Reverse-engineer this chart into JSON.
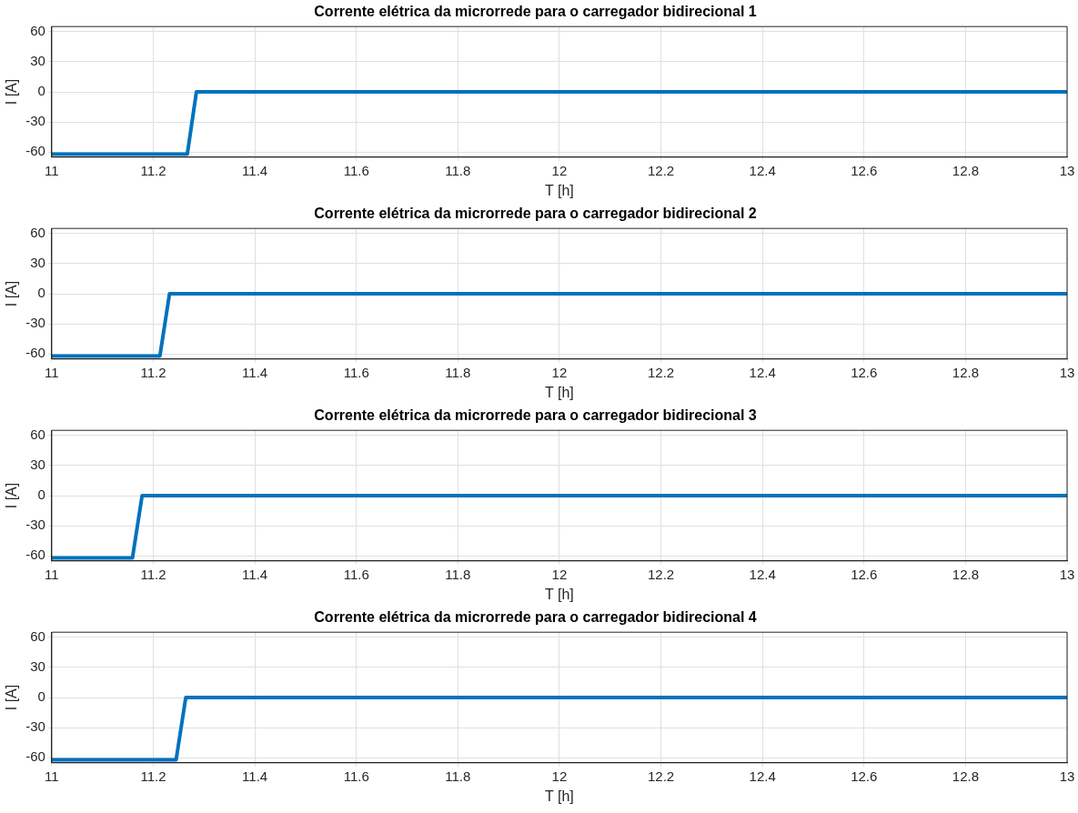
{
  "chart_data": [
    {
      "type": "line",
      "title": "Corrente elétrica da microrrede para o carregador bidirecional 1",
      "xlabel": "T [h]",
      "ylabel": "I [A]",
      "xlim": [
        11,
        13
      ],
      "xticks": [
        11,
        {
          "value": 11.2,
          "label": "11.2"
        },
        {
          "value": 11.4,
          "label": "11.4"
        },
        {
          "value": 11.6,
          "label": "11.6"
        },
        {
          "value": 11.8,
          "label": "11.8"
        },
        12,
        {
          "value": 12.2,
          "label": "12.2"
        },
        {
          "value": 12.4,
          "label": "12.4"
        },
        {
          "value": 12.6,
          "label": "12.6"
        },
        {
          "value": 12.8,
          "label": "12.8"
        },
        13
      ],
      "ylim": [
        -65,
        65
      ],
      "yticks": [
        -60,
        -30,
        0,
        30,
        60
      ],
      "grid": true,
      "series": [
        {
          "color": "#0072bd",
          "x": [
            11,
            11.267,
            11.285,
            13
          ],
          "values": [
            -62,
            -62,
            0,
            0
          ]
        }
      ]
    },
    {
      "type": "line",
      "title": "Corrente elétrica da microrrede para o carregador bidirecional 2",
      "xlabel": "T [h]",
      "ylabel": "I [A]",
      "xlim": [
        11,
        13
      ],
      "xticks": [
        11,
        {
          "value": 11.2,
          "label": "11.2"
        },
        {
          "value": 11.4,
          "label": "11.4"
        },
        {
          "value": 11.6,
          "label": "11.6"
        },
        {
          "value": 11.8,
          "label": "11.8"
        },
        12,
        {
          "value": 12.2,
          "label": "12.2"
        },
        {
          "value": 12.4,
          "label": "12.4"
        },
        {
          "value": 12.6,
          "label": "12.6"
        },
        {
          "value": 12.8,
          "label": "12.8"
        },
        13
      ],
      "ylim": [
        -65,
        65
      ],
      "yticks": [
        -60,
        -30,
        0,
        30,
        60
      ],
      "grid": true,
      "series": [
        {
          "color": "#0072bd",
          "x": [
            11,
            11.213,
            11.232,
            13
          ],
          "values": [
            -62,
            -62,
            0,
            0
          ]
        }
      ]
    },
    {
      "type": "line",
      "title": "Corrente elétrica da microrrede para o carregador bidirecional 3",
      "xlabel": "T [h]",
      "ylabel": "I [A]",
      "xlim": [
        11,
        13
      ],
      "xticks": [
        11,
        {
          "value": 11.2,
          "label": "11.2"
        },
        {
          "value": 11.4,
          "label": "11.4"
        },
        {
          "value": 11.6,
          "label": "11.6"
        },
        {
          "value": 11.8,
          "label": "11.8"
        },
        12,
        {
          "value": 12.2,
          "label": "12.2"
        },
        {
          "value": 12.4,
          "label": "12.4"
        },
        {
          "value": 12.6,
          "label": "12.6"
        },
        {
          "value": 12.8,
          "label": "12.8"
        },
        13
      ],
      "ylim": [
        -65,
        65
      ],
      "yticks": [
        -60,
        -30,
        0,
        30,
        60
      ],
      "grid": true,
      "series": [
        {
          "color": "#0072bd",
          "x": [
            11,
            11.159,
            11.178,
            13
          ],
          "values": [
            -62,
            -62,
            0,
            0
          ]
        }
      ]
    },
    {
      "type": "line",
      "title": "Corrente elétrica da microrrede para o carregador bidirecional 4",
      "xlabel": "T [h]",
      "ylabel": "I [A]",
      "xlim": [
        11,
        13
      ],
      "xticks": [
        11,
        {
          "value": 11.2,
          "label": "11.2"
        },
        {
          "value": 11.4,
          "label": "11.4"
        },
        {
          "value": 11.6,
          "label": "11.6"
        },
        {
          "value": 11.8,
          "label": "11.8"
        },
        12,
        {
          "value": 12.2,
          "label": "12.2"
        },
        {
          "value": 12.4,
          "label": "12.4"
        },
        {
          "value": 12.6,
          "label": "12.6"
        },
        {
          "value": 12.8,
          "label": "12.8"
        },
        13
      ],
      "ylim": [
        -65,
        65
      ],
      "yticks": [
        -60,
        -30,
        0,
        30,
        60
      ],
      "grid": true,
      "series": [
        {
          "color": "#0072bd",
          "x": [
            11,
            11.245,
            11.264,
            13
          ],
          "values": [
            -62,
            -62,
            0,
            0
          ]
        }
      ]
    }
  ]
}
